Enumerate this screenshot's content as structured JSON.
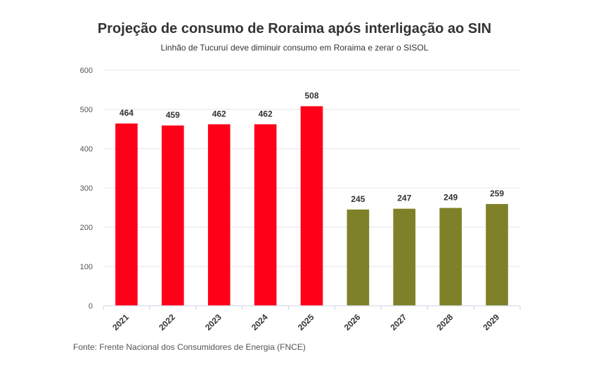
{
  "chart_data": {
    "type": "bar",
    "title": "Projeção de consumo de Roraima após interligação ao SIN",
    "subtitle": "Linhão de Tucuruí deve diminuir consumo em Roraima e zerar o SISOL",
    "categories": [
      "2021",
      "2022",
      "2023",
      "2024",
      "2025",
      "2026",
      "2027",
      "2028",
      "2029"
    ],
    "values": [
      464,
      459,
      462,
      462,
      508,
      245,
      247,
      249,
      259
    ],
    "bar_colors": [
      "#ff0019",
      "#ff0019",
      "#ff0019",
      "#ff0019",
      "#ff0019",
      "#7f8128",
      "#7f8128",
      "#7f8128",
      "#7f8128"
    ],
    "ylim": [
      0,
      600
    ],
    "yticks": [
      0,
      100,
      200,
      300,
      400,
      500,
      600
    ],
    "xlabel": "",
    "ylabel": "",
    "grid": true,
    "data_labels": true,
    "source": "Fonte: Frente Nacional dos Consumidores de Energia (FNCE)"
  }
}
